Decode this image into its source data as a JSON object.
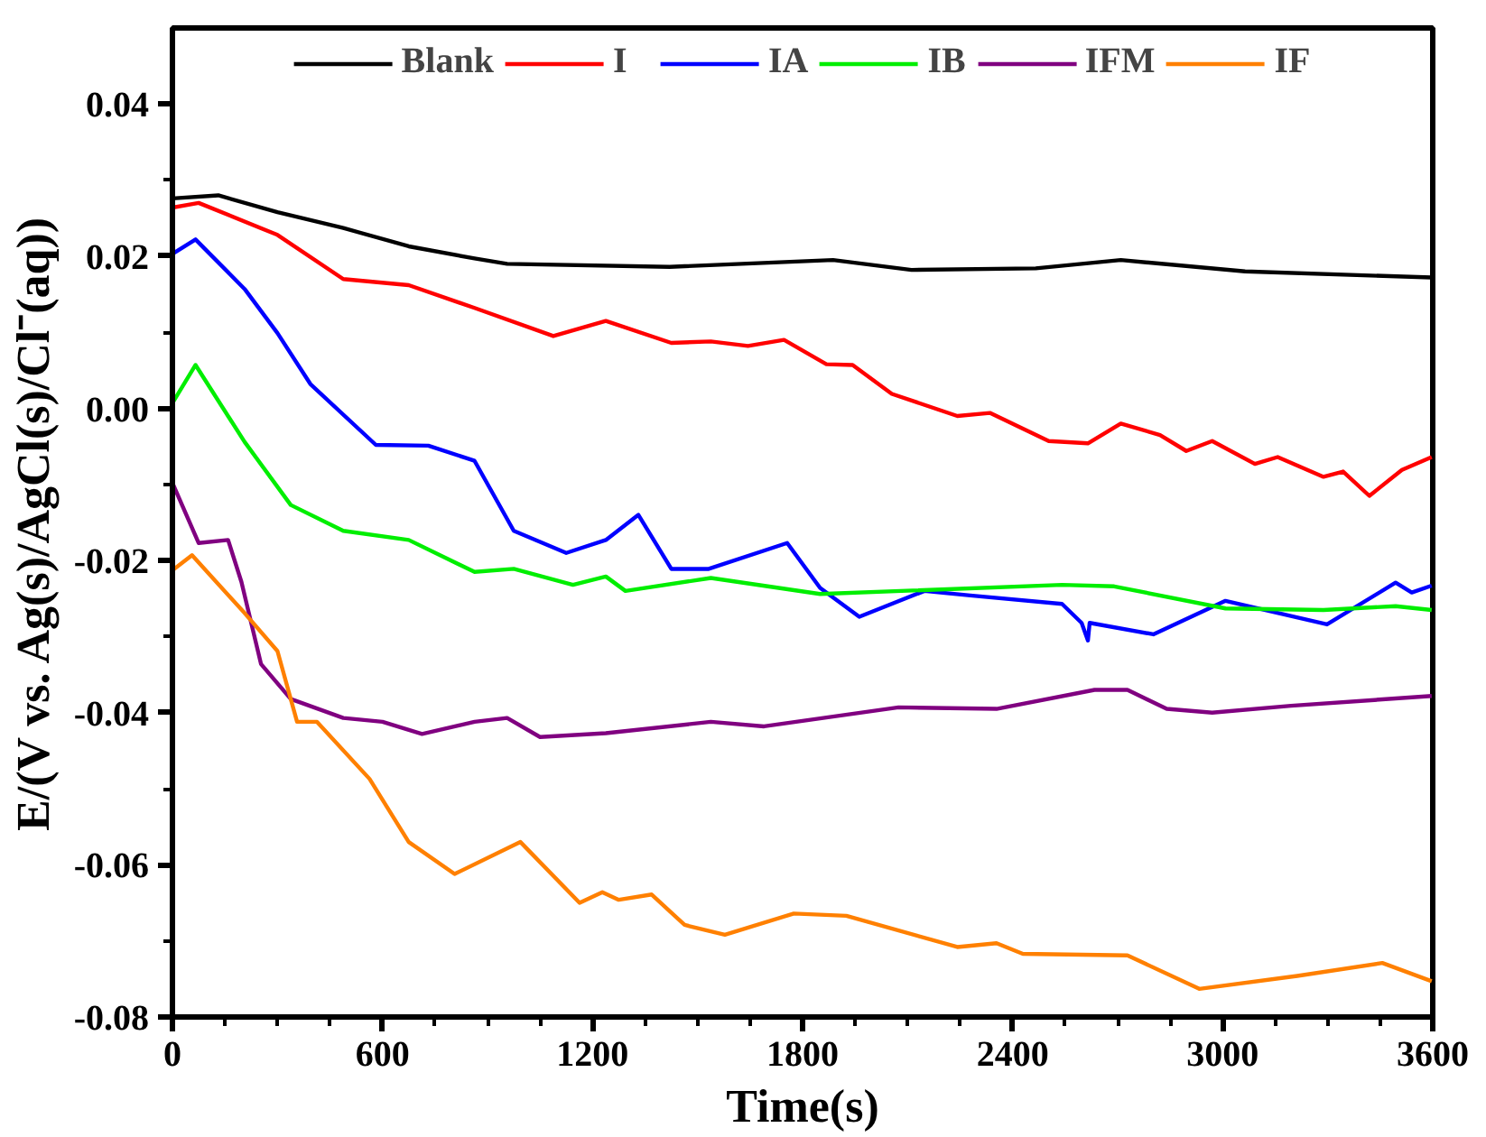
{
  "chart_data": {
    "type": "line",
    "xlabel": "Time(s)",
    "ylabel": "E/(V vs. Ag(s)/AgCl(s)/Cl⁻(aq))",
    "xlim": [
      0,
      3600
    ],
    "xticks": [
      0,
      600,
      1200,
      1800,
      2400,
      3000,
      3600
    ],
    "ylim": [
      -0.08,
      0.05
    ],
    "yticks": [
      {
        "value": -0.08,
        "label": "-0.08"
      },
      {
        "value": -0.06,
        "label": "-0.06"
      },
      {
        "value": -0.04,
        "label": "-0.04"
      },
      {
        "value": -0.02,
        "label": "-0.02"
      },
      {
        "value": 0,
        "label": "0.00"
      },
      {
        "value": 0.02,
        "label": "0.02"
      },
      {
        "value": 0.04,
        "label": "0.04"
      }
    ],
    "grid": false,
    "legend": "top",
    "marker": "none",
    "line_style": "solid",
    "series": [
      {
        "name": "Blank",
        "color": "#000000",
        "x": [
          0,
          131,
          300,
          488,
          675,
          863,
          956,
          1420,
          1887,
          2111,
          2466,
          2709,
          3064,
          3597
        ],
        "values": [
          0.0276,
          0.028,
          0.0258,
          0.0237,
          0.0213,
          0.0197,
          0.019,
          0.0186,
          0.0195,
          0.0182,
          0.0184,
          0.0195,
          0.018,
          0.0172
        ]
      },
      {
        "name": "I",
        "color": "#ff0000",
        "x": [
          0,
          75,
          300,
          488,
          675,
          863,
          1088,
          1238,
          1425,
          1538,
          1644,
          1747,
          1868,
          1943,
          2055,
          2242,
          2335,
          2503,
          2615,
          2709,
          2821,
          2896,
          2970,
          3092,
          3157,
          3288,
          3344,
          3419,
          3512,
          3597
        ],
        "values": [
          0.0264,
          0.027,
          0.0228,
          0.017,
          0.0162,
          0.0132,
          0.0095,
          0.0115,
          0.0086,
          0.0088,
          0.0082,
          0.009,
          0.0058,
          0.0057,
          0.0019,
          -0.001,
          -0.0006,
          -0.0043,
          -0.0046,
          -0.002,
          -0.0035,
          -0.0056,
          -0.0043,
          -0.0073,
          -0.0064,
          -0.009,
          -0.0083,
          -0.0115,
          -0.0081,
          -0.0064
        ]
      },
      {
        "name": "IA",
        "color": "#0000ff",
        "x": [
          0,
          66,
          206,
          300,
          394,
          581,
          731,
          863,
          975,
          1125,
          1238,
          1331,
          1425,
          1532,
          1756,
          1850,
          1962,
          2148,
          2279,
          2541,
          2597,
          2615,
          2620,
          2802,
          3008,
          3298,
          3494,
          3540,
          3597
        ],
        "values": [
          0.0203,
          0.0222,
          0.0157,
          0.0099,
          0.0032,
          -0.0048,
          -0.0049,
          -0.0069,
          -0.0161,
          -0.019,
          -0.0173,
          -0.014,
          -0.0211,
          -0.0211,
          -0.0177,
          -0.0236,
          -0.0274,
          -0.024,
          -0.0246,
          -0.0257,
          -0.0282,
          -0.0305,
          -0.0282,
          -0.0297,
          -0.0253,
          -0.0284,
          -0.0229,
          -0.0242,
          -0.0233
        ]
      },
      {
        "name": "IB",
        "color": "#00ee00",
        "x": [
          0,
          66,
          206,
          338,
          488,
          675,
          863,
          975,
          1144,
          1238,
          1294,
          1538,
          1850,
          2541,
          2690,
          3008,
          3288,
          3494,
          3597
        ],
        "values": [
          0.0007,
          0.0057,
          -0.0044,
          -0.0127,
          -0.0161,
          -0.0173,
          -0.0215,
          -0.0211,
          -0.0232,
          -0.0221,
          -0.024,
          -0.0223,
          -0.0244,
          -0.0232,
          -0.0234,
          -0.0263,
          -0.0265,
          -0.026,
          -0.0265
        ]
      },
      {
        "name": "IFM",
        "color": "#800080",
        "x": [
          0,
          75,
          159,
          197,
          253,
          338,
          488,
          600,
          713,
          863,
          956,
          1050,
          1238,
          1538,
          1690,
          2074,
          2354,
          2634,
          2728,
          2840,
          2970,
          3195,
          3597
        ],
        "values": [
          -0.0098,
          -0.0177,
          -0.0173,
          -0.0228,
          -0.0336,
          -0.0382,
          -0.0407,
          -0.0412,
          -0.0428,
          -0.0412,
          -0.0407,
          -0.0432,
          -0.0427,
          -0.0412,
          -0.0418,
          -0.0393,
          -0.0395,
          -0.037,
          -0.037,
          -0.0395,
          -0.04,
          -0.0391,
          -0.0378
        ]
      },
      {
        "name": "IF",
        "color": "#ff8000",
        "x": [
          0,
          56,
          206,
          300,
          356,
          413,
          563,
          675,
          806,
          994,
          1163,
          1228,
          1275,
          1369,
          1463,
          1578,
          1775,
          1925,
          2242,
          2354,
          2429,
          2728,
          2933,
          3213,
          3456,
          3597
        ],
        "values": [
          -0.0213,
          -0.0193,
          -0.0269,
          -0.0319,
          -0.0412,
          -0.0412,
          -0.0487,
          -0.057,
          -0.0612,
          -0.057,
          -0.065,
          -0.0636,
          -0.0646,
          -0.0639,
          -0.0679,
          -0.0692,
          -0.0664,
          -0.0667,
          -0.0708,
          -0.0703,
          -0.0717,
          -0.0719,
          -0.0763,
          -0.0746,
          -0.0729,
          -0.0753
        ]
      }
    ]
  }
}
